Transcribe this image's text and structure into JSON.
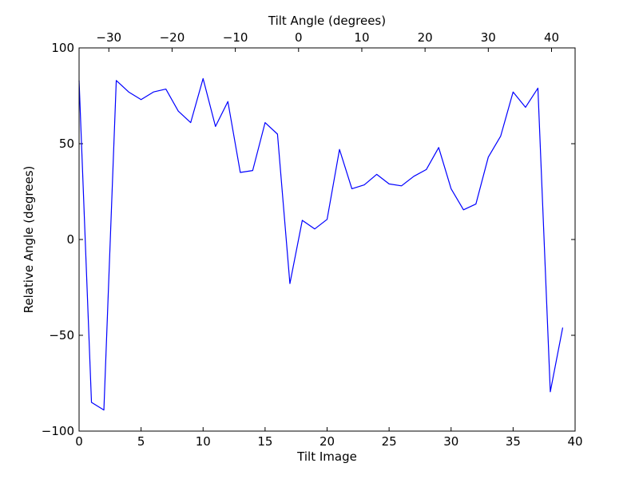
{
  "chart_data": {
    "type": "line",
    "title": "",
    "xlabel": "Tilt Image",
    "ylabel": "Relative Angle (degrees)",
    "top_xlabel": "Tilt Angle (degrees)",
    "xlim": [
      0,
      40
    ],
    "ylim": [
      -100,
      100
    ],
    "grid": false,
    "x_ticks": [
      0,
      5,
      10,
      15,
      20,
      25,
      30,
      35,
      40
    ],
    "x_tick_labels": [
      "0",
      "5",
      "10",
      "15",
      "20",
      "25",
      "30",
      "35",
      "40"
    ],
    "y_ticks": [
      -100,
      -50,
      0,
      50,
      100
    ],
    "y_tick_labels": [
      "−100",
      "−50",
      "0",
      "50",
      "100"
    ],
    "top_ticks": [
      -30,
      -20,
      -10,
      0,
      10,
      20,
      30,
      40
    ],
    "top_tick_labels": [
      "−30",
      "−20",
      "−10",
      "0",
      "10",
      "20",
      "30",
      "40"
    ],
    "top_tick_positions_x": [
      2.4,
      7.5,
      12.6,
      17.7,
      22.8,
      27.9,
      33.0,
      38.1
    ],
    "line_color": "#0000ff",
    "series": [
      {
        "x": [
          0,
          1,
          2,
          3,
          4,
          5,
          6,
          7,
          8,
          9,
          10,
          11,
          12,
          13,
          14,
          15,
          16,
          17,
          18,
          19,
          20,
          21,
          22,
          23,
          24,
          25,
          26,
          27,
          28,
          29,
          30,
          31,
          32,
          33,
          34,
          35,
          36,
          37,
          38,
          39
        ],
        "values": [
          83,
          -85,
          -89,
          83,
          77,
          73,
          77,
          78.5,
          67,
          61,
          84,
          59,
          72,
          35,
          36,
          61,
          55,
          -23,
          10,
          5.5,
          10.5,
          47,
          26.5,
          28.5,
          34,
          29,
          28,
          33,
          36.5,
          48,
          26.5,
          15.5,
          18.5,
          43,
          54,
          77,
          69,
          79,
          -79.5,
          -46
        ]
      }
    ]
  }
}
